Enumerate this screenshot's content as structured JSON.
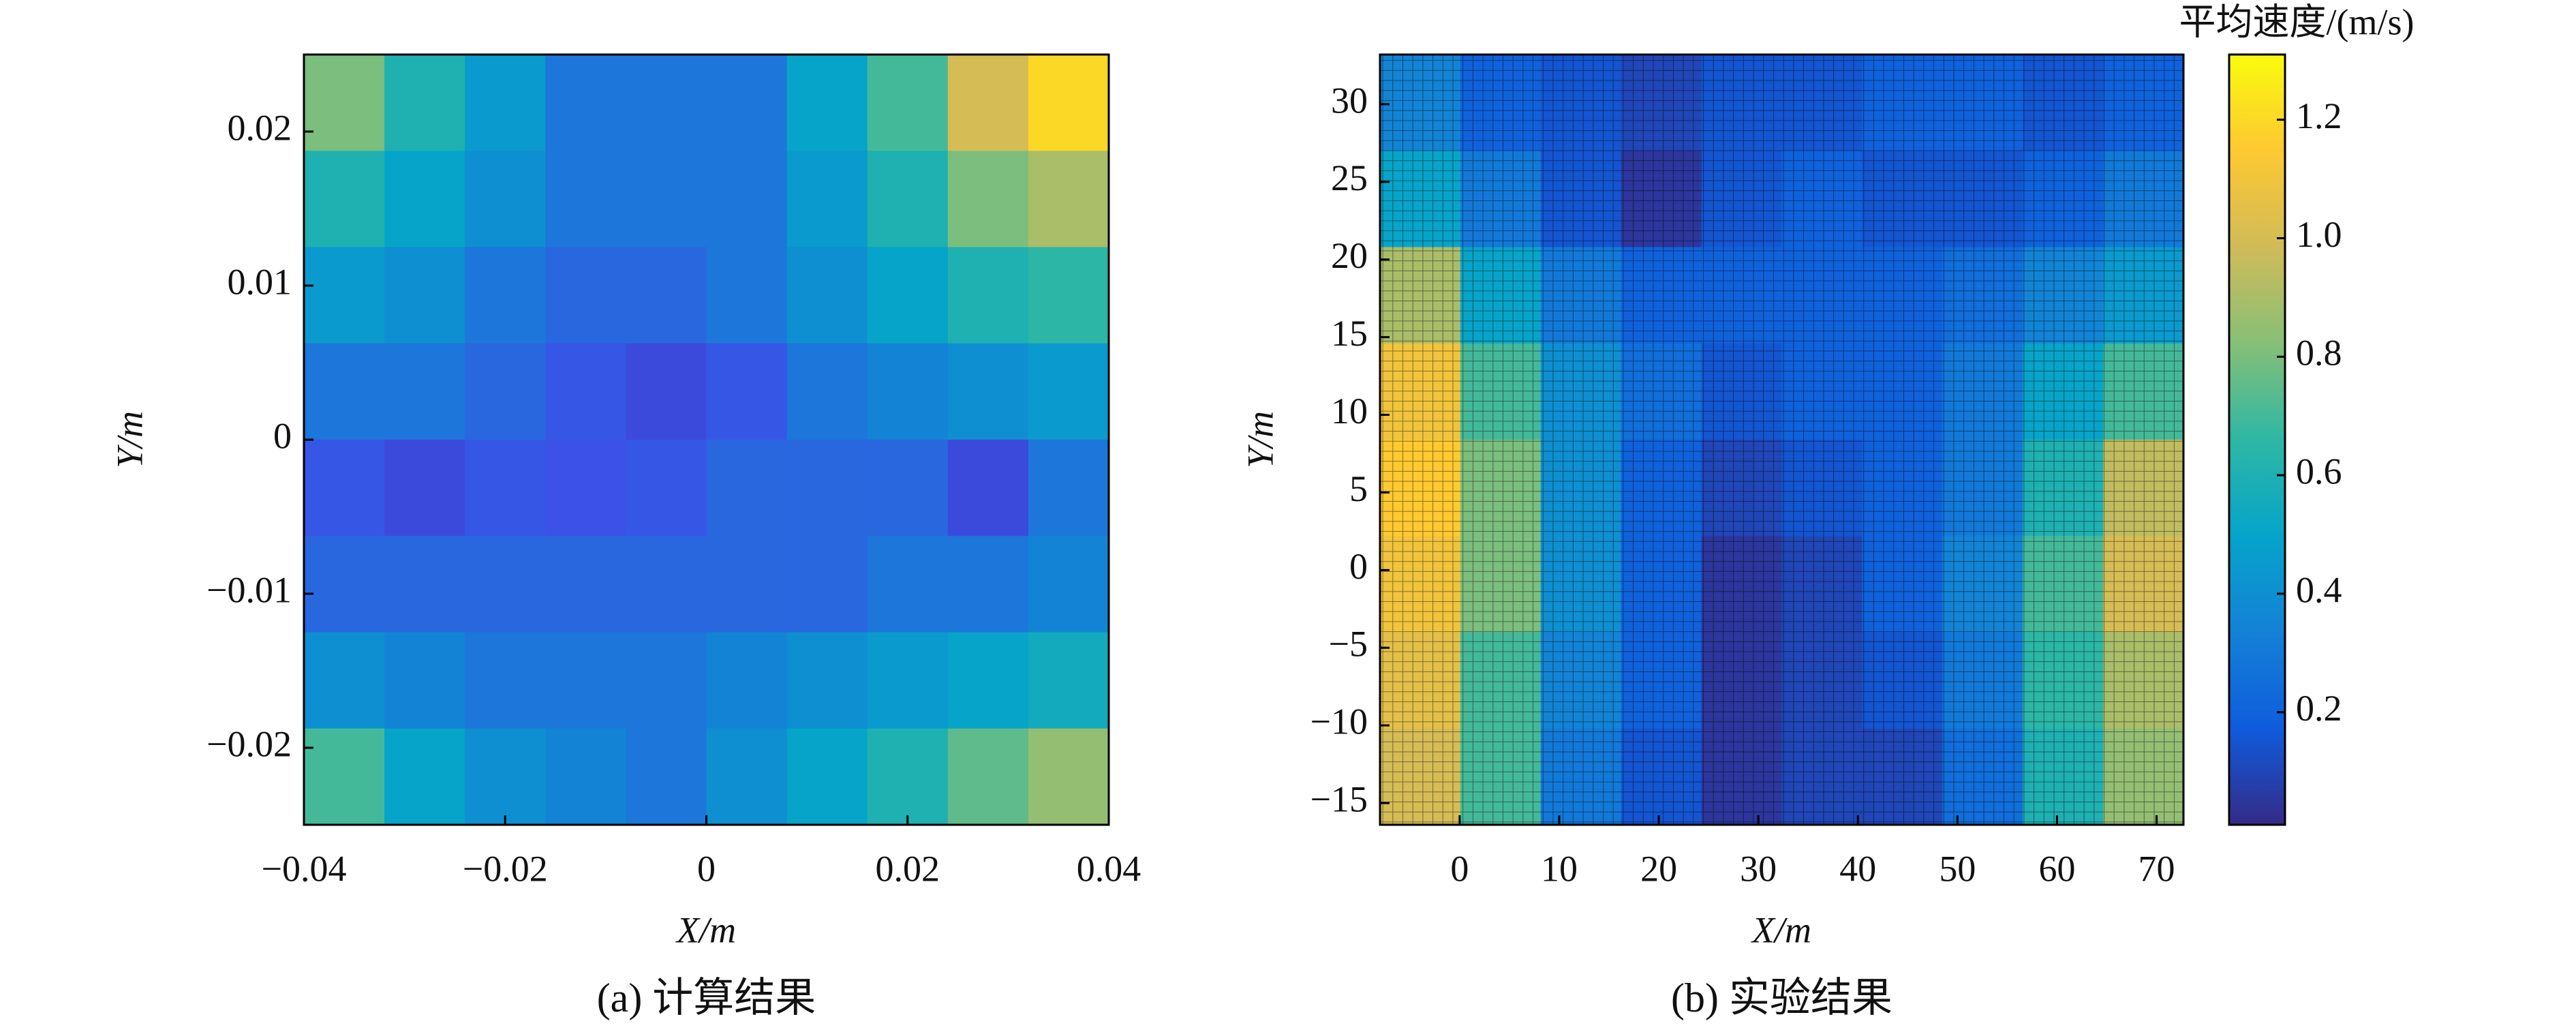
{
  "chart_data": [
    {
      "type": "heatmap",
      "caption": "(a) 计算结果",
      "xlabel": "X/m",
      "ylabel": "Y/m",
      "xlim": [
        -0.04,
        0.04
      ],
      "xticks": [
        {
          "value": -0.04,
          "label": "−0.04"
        },
        {
          "value": -0.02,
          "label": "−0.02"
        },
        0,
        0.02,
        0.04
      ],
      "ylim": [
        -0.025,
        0.025
      ],
      "yticks": [
        {
          "value": -0.02,
          "label": "−0.02"
        },
        {
          "value": -0.01,
          "label": "−0.01"
        },
        0,
        0.01,
        0.02
      ],
      "clim": [
        0.01,
        1.31
      ],
      "colormap": [
        "#352a87",
        "#3d4fe8",
        "#1481d6",
        "#06a4ca",
        "#2eb7a4",
        "#87bf77",
        "#d1bb59",
        "#fec832",
        "#f9fb0e"
      ],
      "z": [
        [
          0.8,
          0.6,
          0.45,
          0.3,
          0.3,
          0.3,
          0.5,
          0.7,
          1.0,
          1.2
        ],
        [
          0.6,
          0.5,
          0.4,
          0.3,
          0.3,
          0.3,
          0.45,
          0.6,
          0.8,
          0.9
        ],
        [
          0.45,
          0.4,
          0.3,
          0.25,
          0.25,
          0.3,
          0.4,
          0.5,
          0.6,
          0.65
        ],
        [
          0.3,
          0.3,
          0.25,
          0.2,
          0.15,
          0.2,
          0.3,
          0.35,
          0.4,
          0.45
        ],
        [
          0.2,
          0.15,
          0.2,
          0.18,
          0.2,
          0.25,
          0.25,
          0.25,
          0.15,
          0.3
        ],
        [
          0.25,
          0.25,
          0.25,
          0.25,
          0.25,
          0.25,
          0.25,
          0.3,
          0.3,
          0.35
        ],
        [
          0.4,
          0.35,
          0.3,
          0.3,
          0.3,
          0.35,
          0.4,
          0.45,
          0.5,
          0.55
        ],
        [
          0.7,
          0.5,
          0.4,
          0.35,
          0.3,
          0.4,
          0.5,
          0.6,
          0.75,
          0.85
        ]
      ]
    },
    {
      "type": "heatmap",
      "caption": "(b) 实验结果",
      "xlabel": "X/m",
      "ylabel": "Y/m",
      "xlim": [
        -8,
        72.7
      ],
      "xticks": [
        0,
        10,
        20,
        30,
        40,
        50,
        60,
        70
      ],
      "ylim": [
        -16.4,
        33.2
      ],
      "yticks": [
        {
          "value": -15,
          "label": "−15"
        },
        {
          "value": -10,
          "label": "−10"
        },
        {
          "value": -5,
          "label": "−5"
        },
        0,
        5,
        10,
        15,
        20,
        25,
        30
      ],
      "clim": [
        0.01,
        1.31
      ],
      "colormap": [
        "#352a87",
        "#0f5cdd",
        "#1481d6",
        "#06a4ca",
        "#2eb7a4",
        "#87bf77",
        "#d1bb59",
        "#fec832",
        "#f9fb0e"
      ],
      "colorbar_title": "平均速度/(m/s)",
      "colorbar_ticks": [
        0.2,
        0.4,
        0.6,
        0.8,
        {
          "value": 1.0,
          "label": "1.0"
        },
        1.2
      ],
      "z": [
        [
          0.35,
          0.2,
          0.15,
          0.1,
          0.15,
          0.15,
          0.2,
          0.2,
          0.15,
          0.2
        ],
        [
          0.5,
          0.3,
          0.15,
          0.05,
          0.15,
          0.2,
          0.15,
          0.15,
          0.2,
          0.3
        ],
        [
          0.9,
          0.5,
          0.3,
          0.2,
          0.2,
          0.2,
          0.2,
          0.25,
          0.35,
          0.45
        ],
        [
          1.1,
          0.7,
          0.4,
          0.25,
          0.15,
          0.2,
          0.2,
          0.3,
          0.5,
          0.7
        ],
        [
          1.15,
          0.8,
          0.4,
          0.2,
          0.1,
          0.15,
          0.2,
          0.3,
          0.6,
          0.95
        ],
        [
          1.1,
          0.8,
          0.4,
          0.2,
          0.05,
          0.1,
          0.2,
          0.35,
          0.7,
          1.0
        ],
        [
          1.05,
          0.7,
          0.35,
          0.2,
          0.05,
          0.1,
          0.15,
          0.3,
          0.65,
          0.9
        ],
        [
          1.0,
          0.7,
          0.3,
          0.15,
          0.05,
          0.1,
          0.1,
          0.25,
          0.6,
          0.85
        ]
      ]
    }
  ]
}
